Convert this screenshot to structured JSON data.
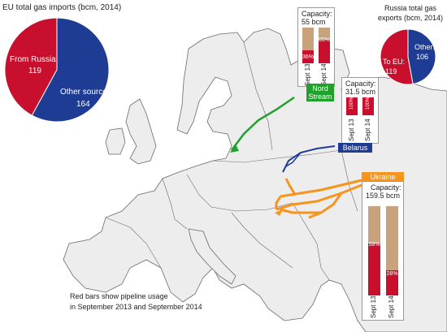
{
  "eu_imports": {
    "title": "EU total gas imports (bcm, 2014)",
    "slices": [
      {
        "label": "From Russia:",
        "value": "119",
        "color": "#c8102e"
      },
      {
        "label": "Other sources:",
        "value": "164",
        "color": "#1f3c95"
      }
    ],
    "values": [
      119,
      164
    ]
  },
  "russia_exports": {
    "title_line1": "Russia total gas",
    "title_line2": "exports (bcm, 2014)",
    "slices": [
      {
        "label": "To EU:",
        "value": "119",
        "color": "#c8102e"
      },
      {
        "label": "Other:",
        "value": "106",
        "color": "#1f3c95"
      }
    ],
    "values": [
      119,
      106
    ]
  },
  "pipelines": {
    "nord_stream": {
      "name_line1": "Nord",
      "name_line2": "Stream",
      "color": "#1fa12a",
      "capacity_line1": "Capacity:",
      "capacity_line2": "55 bcm",
      "bars": [
        {
          "label": "Sept 13",
          "pct": "36%",
          "value": 36
        },
        {
          "label": "Sept 14",
          "pct": "65%",
          "value": 65
        }
      ]
    },
    "belarus": {
      "name": "Belarus",
      "color": "#1f3c95",
      "capacity_line1": "Capacity:",
      "capacity_line2": "31.5 bcm",
      "bars": [
        {
          "label": "Sept 13",
          "pct": "100%",
          "value": 100
        },
        {
          "label": "Sept 14",
          "pct": "100%",
          "value": 100
        }
      ]
    },
    "ukraine": {
      "name": "Ukraine",
      "color": "#f7941d",
      "capacity_line1": "Capacity:",
      "capacity_line2": "159.5 bcm",
      "bars": [
        {
          "label": "Sept 13",
          "pct": "58%",
          "value": 58
        },
        {
          "label": "Sept 14",
          "pct": "28%",
          "value": 28
        }
      ]
    }
  },
  "note_line1": "Red bars show pipeline usage",
  "note_line2": "in September 2013 and September 2014",
  "colors": {
    "land": "#ededed",
    "border": "#6a6a6a",
    "usage": "#c8102e",
    "capacity": "#c8a27a"
  }
}
